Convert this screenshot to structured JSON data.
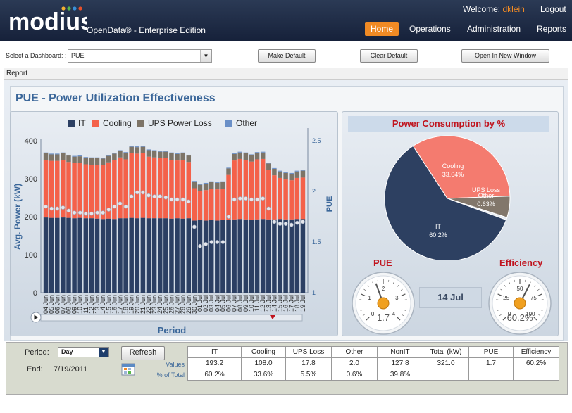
{
  "header": {
    "logo_text": "modius",
    "edition": "OpenData® - Enterprise Edition",
    "welcome_label": "Welcome:",
    "user": "dklein",
    "logout": "Logout",
    "nav": [
      "Home",
      "Operations",
      "Administration",
      "Reports"
    ],
    "active_nav": "Home"
  },
  "toolbar": {
    "dashboard_label": "Select a Dashboard: :",
    "dashboard_value": "PUE",
    "make_default": "Make Default",
    "clear_default": "Clear Default",
    "open_window": "Open In New Window"
  },
  "report_label": "Report",
  "page_title": "PUE - Power Utilization Effectiveness",
  "pie_title": "Power Consumption by %",
  "gauges": {
    "pue": {
      "title": "PUE",
      "value": "1.7",
      "level": 1.7,
      "ticks": [
        "0",
        "1",
        "2",
        "3",
        "4"
      ],
      "min": 0,
      "max": 4
    },
    "efficiency": {
      "title": "Efficiency",
      "value": "60.2%",
      "level": 60.2,
      "ticks": [
        "0",
        "25",
        "50",
        "75",
        "100"
      ],
      "min": 0,
      "max": 100
    }
  },
  "selected_date": "14 Jul",
  "chart_data": [
    {
      "type": "bar",
      "stacked": true,
      "categories": [
        "04 Jun",
        "05 Jun",
        "06 Jun",
        "07 Jun",
        "08 Jun",
        "09 Jun",
        "10 Jun",
        "11 Jun",
        "12 Jun",
        "13 Jun",
        "14 Jun",
        "15 Jun",
        "16 Jun",
        "17 Jun",
        "18 Jun",
        "19 Jun",
        "20 Jun",
        "21 Jun",
        "22 Jun",
        "23 Jun",
        "24 Jun",
        "25 Jun",
        "26 Jun",
        "27 Jun",
        "28 Jun",
        "29 Jun",
        "30 Jun",
        "01 Jul",
        "02 Jul",
        "03 Jul",
        "04 Jul",
        "05 Jul",
        "06 Jul",
        "07 Jul",
        "08 Jul",
        "09 Jul",
        "10 Jul",
        "11 Jul",
        "12 Jul",
        "13 Jul",
        "14 Jul",
        "15 Jul",
        "16 Jul",
        "17 Jul",
        "18 Jul",
        "19 Jul"
      ],
      "series": [
        {
          "name": "IT",
          "color": "#2b3f63",
          "values": [
            198,
            197,
            197,
            198,
            197,
            196,
            197,
            196,
            196,
            195,
            194,
            195,
            194,
            196,
            196,
            197,
            196,
            197,
            196,
            196,
            196,
            196,
            195,
            196,
            195,
            196,
            190,
            192,
            190,
            191,
            190,
            191,
            192,
            193,
            194,
            193,
            192,
            193,
            194,
            193,
            193,
            194,
            193,
            193,
            194,
            194
          ]
        },
        {
          "name": "Cooling",
          "color": "#f4614a",
          "values": [
            152,
            150,
            150,
            152,
            147,
            145,
            145,
            142,
            141,
            142,
            142,
            148,
            155,
            160,
            155,
            170,
            170,
            170,
            162,
            160,
            158,
            158,
            155,
            152,
            155,
            148,
            85,
            75,
            80,
            83,
            82,
            83,
            118,
            155,
            158,
            157,
            153,
            158,
            158,
            130,
            116,
            108,
            105,
            103,
            108,
            109
          ]
        },
        {
          "name": "UPS Power Loss",
          "color": "#7d7467",
          "values": [
            17,
            17,
            17,
            17,
            17,
            17,
            17,
            17,
            17,
            17,
            17,
            17,
            17,
            17,
            17,
            17,
            17,
            17,
            17,
            17,
            17,
            17,
            17,
            17,
            17,
            17,
            17,
            17,
            17,
            17,
            17,
            17,
            17,
            17,
            17,
            17,
            17,
            17,
            17,
            17,
            17,
            17,
            17,
            17,
            17,
            18
          ]
        },
        {
          "name": "Other",
          "color": "#6a8fc7",
          "values": [
            2,
            2,
            2,
            2,
            2,
            2,
            2,
            2,
            2,
            2,
            2,
            2,
            2,
            2,
            2,
            2,
            2,
            2,
            2,
            2,
            2,
            2,
            2,
            2,
            2,
            2,
            2,
            2,
            2,
            2,
            2,
            2,
            2,
            2,
            2,
            2,
            2,
            2,
            2,
            2,
            2,
            2,
            2,
            2,
            2,
            2
          ]
        }
      ],
      "pue_series": {
        "name": "PUE",
        "values": [
          1.85,
          1.83,
          1.83,
          1.84,
          1.81,
          1.79,
          1.79,
          1.78,
          1.78,
          1.79,
          1.79,
          1.82,
          1.85,
          1.88,
          1.85,
          1.95,
          1.99,
          1.99,
          1.96,
          1.95,
          1.95,
          1.94,
          1.92,
          1.92,
          1.92,
          1.9,
          1.65,
          1.46,
          1.48,
          1.5,
          1.5,
          1.5,
          1.75,
          1.92,
          1.93,
          1.93,
          1.92,
          1.92,
          1.93,
          1.83,
          1.7,
          1.68,
          1.68,
          1.67,
          1.69,
          1.7
        ]
      },
      "xlabel": "Period",
      "ylabel": "Avg. Power (kW)",
      "y2label": "PUE",
      "ylim": [
        0,
        400
      ],
      "y2lim": [
        1,
        2.5
      ],
      "yticks": [
        "0",
        "100",
        "200",
        "300",
        "400"
      ],
      "y2ticks": [
        "1",
        "1.5",
        "2",
        "2.5"
      ],
      "legend": [
        "IT",
        "Cooling",
        "UPS Power Loss",
        "Other"
      ],
      "legend_position": "top"
    },
    {
      "type": "pie",
      "title": "Power Consumption by %",
      "slices": [
        {
          "label": "IT",
          "value": 60.2,
          "pct": "60.2%",
          "color": "#2d4061"
        },
        {
          "label": "Cooling",
          "value": 33.64,
          "pct": "33.64%",
          "color": "#f47b6f"
        },
        {
          "label": "UPS Loss",
          "value": 5.53,
          "pct": "",
          "color": "#82776b"
        },
        {
          "label": "Other",
          "value": 0.63,
          "pct": "0.63%",
          "color": "#e8edf4"
        }
      ]
    }
  ],
  "footer": {
    "period_label": "Period:",
    "period_value": "Day",
    "end_label": "End:",
    "end_value": "7/19/2011",
    "refresh": "Refresh",
    "row_labels": [
      "Values",
      "% of Total"
    ],
    "headers": [
      "IT",
      "Cooling",
      "UPS Loss",
      "Other",
      "NonIT",
      "Total (kW)",
      "PUE",
      "Efficiency"
    ],
    "values": [
      "193.2",
      "108.0",
      "17.8",
      "2.0",
      "127.8",
      "321.0",
      "1.7",
      "60.2%"
    ],
    "percents": [
      "60.2%",
      "33.6%",
      "5.5%",
      "0.6%",
      "39.8%",
      "",
      "",
      ""
    ]
  }
}
